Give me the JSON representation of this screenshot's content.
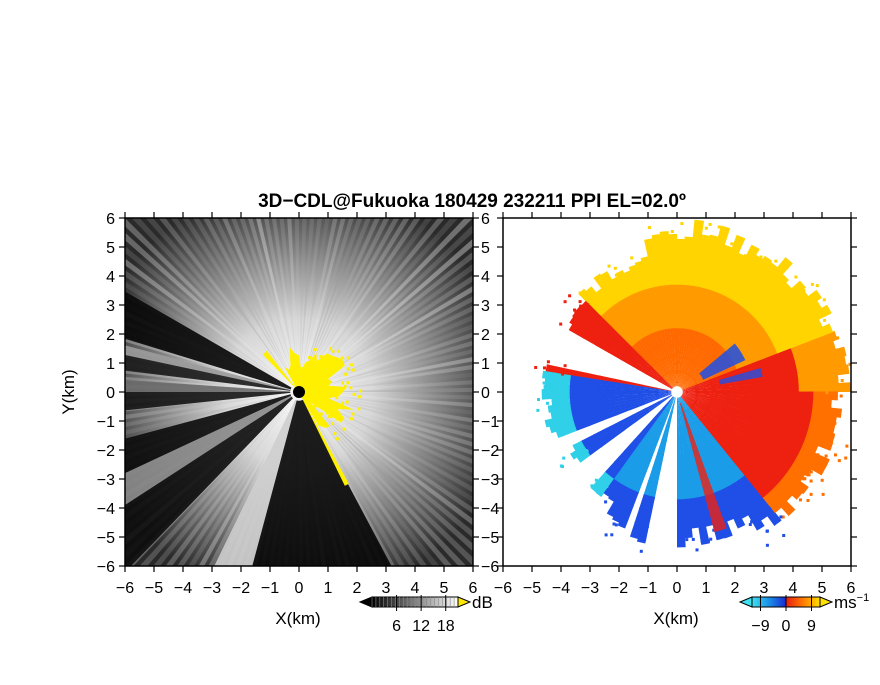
{
  "title": "3D−CDL@Fukuoka 180429 232211 PPI EL=02.0º",
  "colors": {
    "radar_dark": "#0b0b0b",
    "radar_bright": "#f4f4f4",
    "yellow": "#fff000",
    "blue": "#1f4fe6",
    "cyan": "#2fd0e8",
    "red": "#ee2010",
    "orange": "#ff9a00",
    "yellow_orange": "#ffd400"
  },
  "chart_data": [
    {
      "type": "heatmap",
      "name": "reflectivity-panel",
      "xlabel": "X(km)",
      "ylabel": "Y(km)",
      "xlim": [
        -6,
        6
      ],
      "ylim": [
        -6,
        6
      ],
      "x_ticks": [
        "−6",
        "−5",
        "−4",
        "−3",
        "−2",
        "−1",
        "0",
        "1",
        "2",
        "3",
        "4",
        "5",
        "6"
      ],
      "y_ticks": [
        "6",
        "5",
        "4",
        "3",
        "2",
        "1",
        "0",
        "−1",
        "−2",
        "−3",
        "−4",
        "−5",
        "−6"
      ],
      "colorbar": {
        "unit": "dB",
        "tick_labels": [
          "6",
          "12",
          "18"
        ],
        "tick_values": [
          6,
          12,
          18
        ],
        "range": [
          0,
          21
        ]
      }
    },
    {
      "type": "heatmap",
      "name": "doppler-velocity-panel",
      "xlabel": "X(km)",
      "ylabel": "",
      "xlim": [
        -6,
        6
      ],
      "ylim": [
        -6,
        6
      ],
      "x_ticks": [
        "−6",
        "−5",
        "−4",
        "−3",
        "−2",
        "−1",
        "0",
        "1",
        "2",
        "3",
        "4",
        "5",
        "6"
      ],
      "y_ticks": [
        "6",
        "5",
        "4",
        "3",
        "2",
        "1",
        "0",
        "−1",
        "−2",
        "−3",
        "−4",
        "−5",
        "−6"
      ],
      "colorbar": {
        "unit": "ms",
        "unit_superscript": "−1",
        "tick_labels": [
          "−9",
          "0",
          "9"
        ],
        "tick_values": [
          -9,
          0,
          9
        ],
        "range": [
          -12,
          12
        ]
      }
    }
  ]
}
